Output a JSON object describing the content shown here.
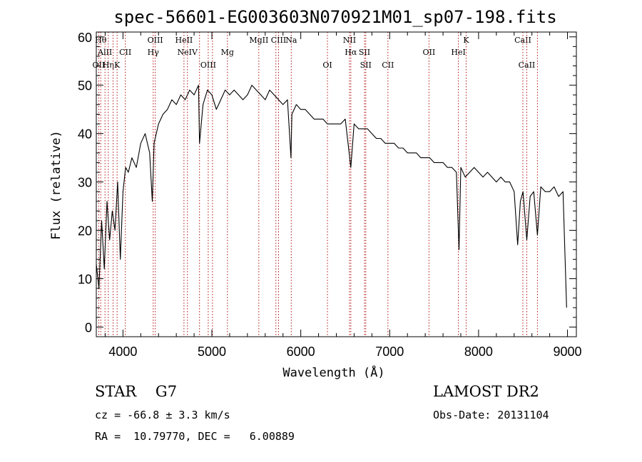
{
  "chart_data": {
    "type": "line",
    "title": "spec-56601-EG003603N070921M01_sp07-198.fits",
    "xlabel": "Wavelength (Å)",
    "ylabel": "Flux (relative)",
    "xlim": [
      3700,
      9100
    ],
    "ylim": [
      -2,
      61
    ],
    "xticks": [
      4000,
      5000,
      6000,
      7000,
      8000,
      9000
    ],
    "yticks": [
      0,
      10,
      20,
      30,
      40,
      50,
      60
    ],
    "grid": false,
    "series": [
      {
        "x": [
          3700,
          3730,
          3760,
          3790,
          3820,
          3850,
          3880,
          3910,
          3940,
          3970,
          4000,
          4030,
          4060,
          4100,
          4150,
          4200,
          4250,
          4300,
          4330,
          4350,
          4400,
          4450,
          4500,
          4550,
          4600,
          4650,
          4700,
          4750,
          4800,
          4850,
          4861,
          4900,
          4950,
          5000,
          5050,
          5100,
          5150,
          5200,
          5250,
          5300,
          5350,
          5400,
          5450,
          5500,
          5550,
          5600,
          5650,
          5700,
          5750,
          5800,
          5850,
          5890,
          5900,
          5950,
          6000,
          6050,
          6100,
          6150,
          6200,
          6250,
          6300,
          6350,
          6400,
          6450,
          6500,
          6563,
          6600,
          6650,
          6700,
          6750,
          6800,
          6850,
          6900,
          6950,
          7000,
          7050,
          7100,
          7150,
          7200,
          7250,
          7300,
          7350,
          7400,
          7450,
          7500,
          7550,
          7600,
          7650,
          7700,
          7750,
          7780,
          7800,
          7850,
          7900,
          7950,
          8000,
          8050,
          8100,
          8150,
          8200,
          8250,
          8300,
          8350,
          8400,
          8440,
          8470,
          8500,
          8542,
          8580,
          8620,
          8662,
          8700,
          8750,
          8800,
          8850,
          8900,
          8950,
          8990
        ],
        "y": [
          13,
          8,
          22,
          12,
          26,
          18,
          24,
          20,
          30,
          14,
          28,
          33,
          32,
          35,
          33,
          38,
          40,
          36,
          26,
          38,
          42,
          44,
          45,
          47,
          46,
          48,
          47,
          49,
          48,
          50,
          38,
          46,
          49,
          48,
          45,
          47,
          49,
          48,
          49,
          48,
          47,
          48,
          50,
          49,
          48,
          47,
          49,
          48,
          47,
          46,
          47,
          35,
          44,
          46,
          45,
          45,
          44,
          43,
          43,
          43,
          42,
          42,
          42,
          42,
          43,
          33,
          42,
          41,
          41,
          41,
          40,
          39,
          39,
          38,
          38,
          38,
          37,
          37,
          36,
          36,
          36,
          35,
          35,
          35,
          34,
          34,
          34,
          33,
          33,
          32,
          16,
          33,
          31,
          32,
          33,
          32,
          31,
          32,
          31,
          30,
          31,
          30,
          30,
          28,
          17,
          26,
          28,
          18,
          27,
          28,
          19,
          29,
          28,
          28,
          29,
          27,
          28,
          4
        ]
      }
    ],
    "lines": [
      {
        "wl": 3727,
        "name": "OII",
        "row": 3
      },
      {
        "wl": 3750,
        "name": "Hθ",
        "row": 1
      },
      {
        "wl": 3798,
        "name": "AlII",
        "row": 2
      },
      {
        "wl": 3835,
        "name": "Hη",
        "row": 3
      },
      {
        "wl": 3889,
        "name": "",
        "row": 0
      },
      {
        "wl": 3934,
        "name": "K",
        "row": 3
      },
      {
        "wl": 4026,
        "name": "CII",
        "row": 2
      },
      {
        "wl": 4340,
        "name": "Hγ",
        "row": 2
      },
      {
        "wl": 4363,
        "name": "OIII",
        "row": 1
      },
      {
        "wl": 4861,
        "name": "",
        "row": 0
      },
      {
        "wl": 4686,
        "name": "HeII",
        "row": 1
      },
      {
        "wl": 4725,
        "name": "NeIV",
        "row": 2
      },
      {
        "wl": 4959,
        "name": "OIII",
        "row": 3
      },
      {
        "wl": 5007,
        "name": "",
        "row": 0
      },
      {
        "wl": 5175,
        "name": "Mg",
        "row": 2
      },
      {
        "wl": 5528,
        "name": "MgII",
        "row": 1
      },
      {
        "wl": 5720,
        "name": "",
        "row": 0
      },
      {
        "wl": 5750,
        "name": "CIII",
        "row": 1
      },
      {
        "wl": 5893,
        "name": "Na",
        "row": 1
      },
      {
        "wl": 6300,
        "name": "OI",
        "row": 3
      },
      {
        "wl": 6548,
        "name": "NII",
        "row": 1
      },
      {
        "wl": 6563,
        "name": "Hα",
        "row": 2
      },
      {
        "wl": 6717,
        "name": "SII",
        "row": 2
      },
      {
        "wl": 6731,
        "name": "SII",
        "row": 3
      },
      {
        "wl": 6980,
        "name": "CII",
        "row": 3
      },
      {
        "wl": 7442,
        "name": "OII",
        "row": 2
      },
      {
        "wl": 7773,
        "name": "HeI",
        "row": 2
      },
      {
        "wl": 7860,
        "name": "K",
        "row": 1
      },
      {
        "wl": 8498,
        "name": "CaII",
        "row": 1
      },
      {
        "wl": 8542,
        "name": "CaII",
        "row": 3
      },
      {
        "wl": 8662,
        "name": "",
        "row": 0
      }
    ]
  },
  "footer": {
    "object_class": "STAR    G7",
    "survey": "LAMOST DR2",
    "cz": "cz = -66.8 ± 3.3 km/s",
    "obs_date": "Obs-Date: 20131104",
    "coords": "RA =  10.79770, DEC =   6.00889"
  }
}
